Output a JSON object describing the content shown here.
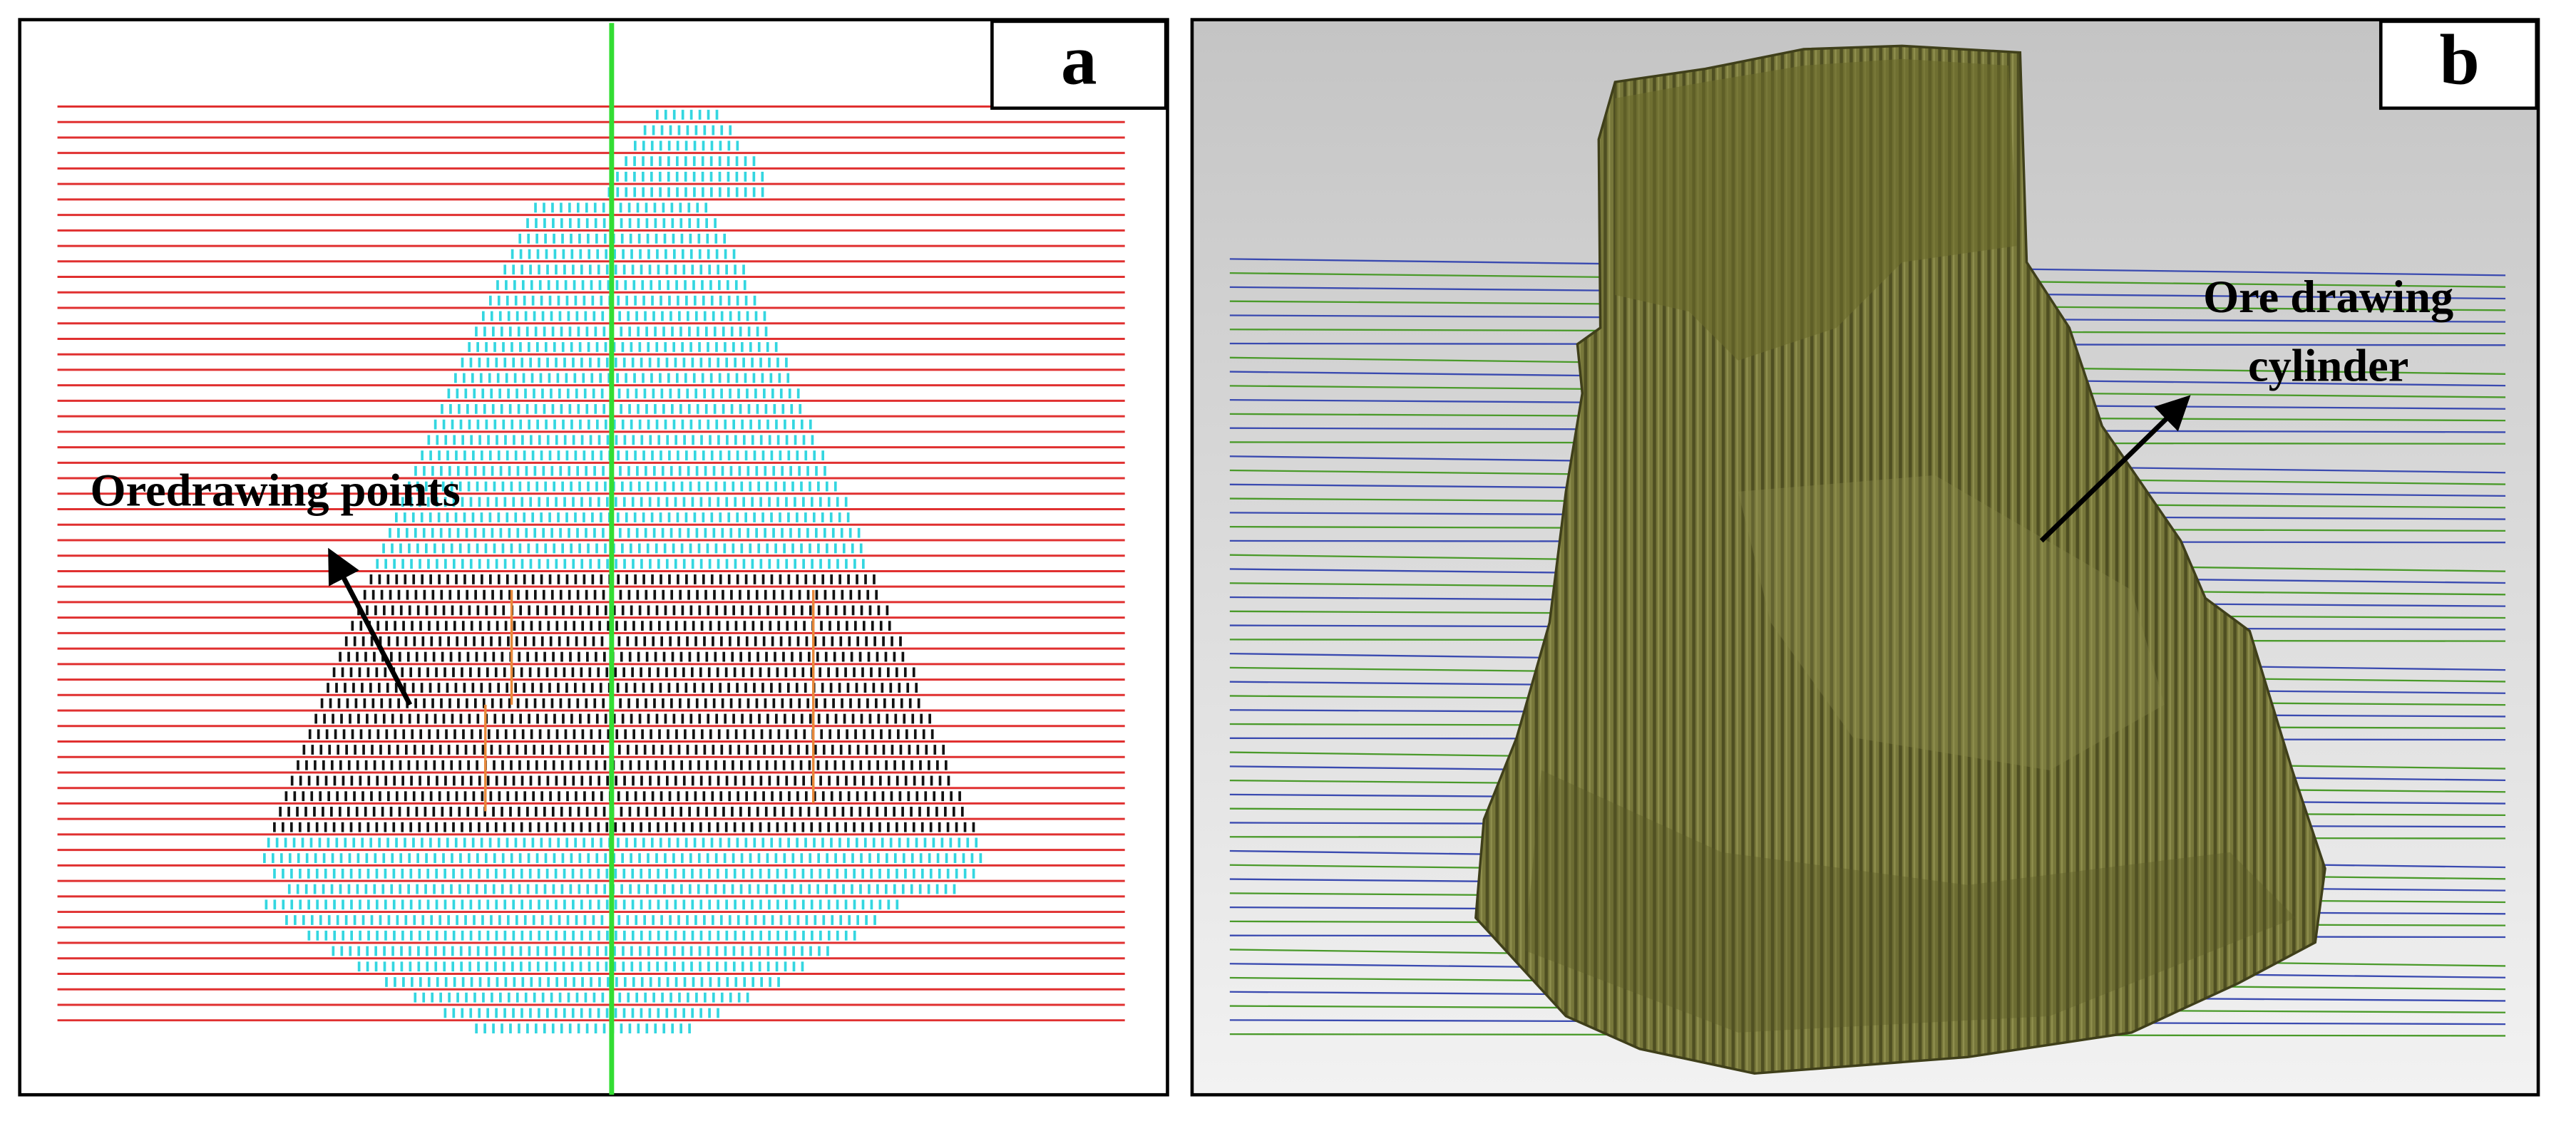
{
  "panels": [
    {
      "label": "a",
      "annotation": "Oredrawing points"
    },
    {
      "label": "b",
      "annotation_lines": [
        "Ore drawing",
        "cylinder"
      ]
    }
  ]
}
